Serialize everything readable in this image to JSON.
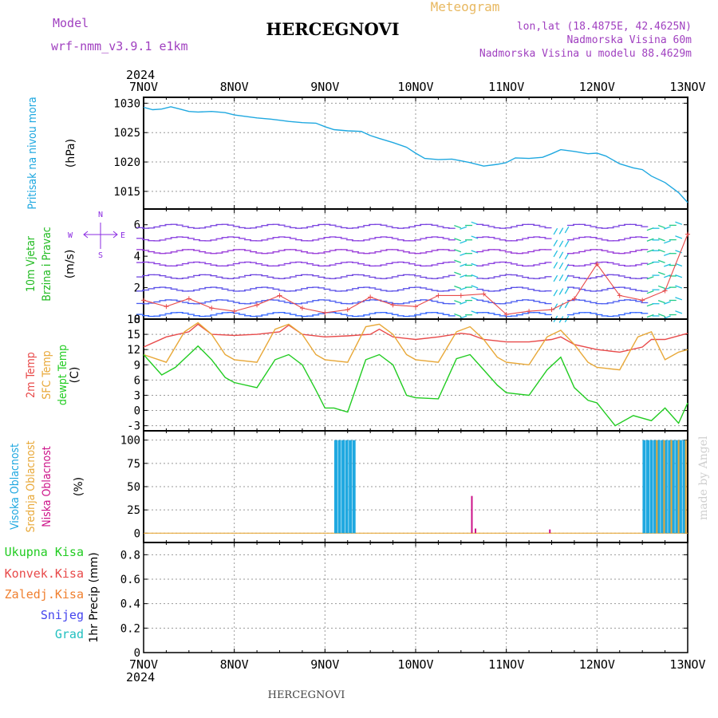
{
  "header": {
    "model_label": "Model",
    "model_name": "wrf-nmm_v3.9.1 e1km",
    "station": "HERCEGNOVI",
    "meteogram_label": "Meteogram",
    "lonlat": "lon,lat (18.4875E, 42.4625N)",
    "altitude": "Nadmorska Visina 60m",
    "model_altitude": "Nadmorska Visina u modelu 88.4629m",
    "footer_station": "HERCEGNOVI",
    "made_by": "made by Angel"
  },
  "time_axis": {
    "year": "2024",
    "labels": [
      "7NOV",
      "8NOV",
      "9NOV",
      "10NOV",
      "11NOV",
      "12NOV",
      "13NOV"
    ],
    "days": 6
  },
  "colors": {
    "pressure": "#1fa8e0",
    "temp2m": "#e84a4a",
    "sfc": "#e8a838",
    "dewpt": "#22cc22",
    "wind_label": "#22bb22",
    "high_cloud": "#1fa8e0",
    "mid_cloud": "#e8a838",
    "low_cloud": "#cc1188",
    "purple": "#8b2be2"
  },
  "compass": {
    "n": "N",
    "s": "S",
    "e": "E",
    "w": "W"
  },
  "panels": [
    {
      "id": "pressure",
      "labels": [
        {
          "text": "Pritisak na nivou mora",
          "color": "#1fa8e0"
        }
      ],
      "unit": "(hPa)",
      "yticks": [
        "1030",
        "1025",
        "1020",
        "1015"
      ]
    },
    {
      "id": "wind",
      "labels": [
        {
          "text": "10m Vjetar",
          "color": "#22bb22"
        },
        {
          "text": "Brzina i Pravac",
          "color": "#22bb22"
        }
      ],
      "unit": "(m/s)",
      "yticks": [
        "6",
        "4",
        "2",
        "0"
      ]
    },
    {
      "id": "temp",
      "labels": [
        {
          "text": "2m Temp",
          "color": "#e84a4a"
        },
        {
          "text": "SFC Temp",
          "color": "#e8a838"
        },
        {
          "text": "dewpt Temp",
          "color": "#22cc22"
        }
      ],
      "unit": "(C)",
      "yticks": [
        "18",
        "15",
        "12",
        "9",
        "6",
        "3",
        "0",
        "-3"
      ]
    },
    {
      "id": "cloud",
      "labels": [
        {
          "text": "Visoka Oblacnost",
          "color": "#1fa8e0"
        },
        {
          "text": "Srednja Oblacnost",
          "color": "#e8a838"
        },
        {
          "text": "Niska Oblacnost",
          "color": "#cc1188"
        }
      ],
      "unit": "(%)",
      "yticks": [
        "100",
        "75",
        "50",
        "25",
        "0"
      ]
    },
    {
      "id": "precip",
      "labels": [],
      "unit": "1hr Precip (mm)",
      "yticks": [
        "0.8",
        "0.6",
        "0.4",
        "0.2",
        "0"
      ]
    }
  ],
  "precip_legend": [
    {
      "text": "Ukupna Kisa",
      "color": "#22cc22"
    },
    {
      "text": "Konvek.Kisa",
      "color": "#e84a4a"
    },
    {
      "text": "Zaledj.Kisa",
      "color": "#f08030"
    },
    {
      "text": "Snijeg",
      "color": "#4444ee"
    },
    {
      "text": "Grad",
      "color": "#22c0c0"
    }
  ],
  "chart_data": [
    {
      "type": "line",
      "ylabel": "Pritisak na nivou mora (hPa)",
      "ylim": [
        1012,
        1031
      ],
      "series": [
        {
          "name": "Pritisak na nivou mora",
          "x": [
            0,
            0.1,
            0.2,
            0.3,
            0.4,
            0.5,
            0.6,
            0.75,
            0.9,
            1.0,
            1.1,
            1.25,
            1.4,
            1.5,
            1.6,
            1.75,
            1.9,
            2.0,
            2.1,
            2.25,
            2.4,
            2.5,
            2.6,
            2.75,
            2.9,
            3.0,
            3.1,
            3.25,
            3.4,
            3.5,
            3.6,
            3.75,
            3.9,
            4.0,
            4.1,
            4.25,
            4.4,
            4.5,
            4.6,
            4.75,
            4.9,
            5.0,
            5.1,
            5.25,
            5.4,
            5.5,
            5.6,
            5.75,
            5.9,
            6.0
          ],
          "y": [
            1029.3,
            1028.9,
            1029.0,
            1029.4,
            1029.0,
            1028.6,
            1028.5,
            1028.6,
            1028.4,
            1028.0,
            1027.8,
            1027.5,
            1027.3,
            1027.1,
            1026.9,
            1026.7,
            1026.6,
            1026.0,
            1025.5,
            1025.3,
            1025.2,
            1024.5,
            1024.0,
            1023.3,
            1022.5,
            1021.5,
            1020.6,
            1020.4,
            1020.5,
            1020.2,
            1019.9,
            1019.3,
            1019.6,
            1019.9,
            1020.7,
            1020.6,
            1020.8,
            1021.4,
            1022.1,
            1021.8,
            1021.4,
            1021.5,
            1021.0,
            1019.7,
            1019.0,
            1018.7,
            1017.6,
            1016.5,
            1014.8,
            1013.1
          ]
        }
      ]
    },
    {
      "type": "line",
      "ylabel": "10m Vjetar Brzina i Pravac (m/s)",
      "ylim": [
        0,
        7
      ],
      "series": [
        {
          "name": "10m Vjetar",
          "x": [
            0,
            0.25,
            0.5,
            0.75,
            1.0,
            1.25,
            1.5,
            1.75,
            2.0,
            2.25,
            2.5,
            2.75,
            3.0,
            3.25,
            3.5,
            3.75,
            4.0,
            4.25,
            4.5,
            4.75,
            5.0,
            5.25,
            5.5,
            5.75,
            6.0
          ],
          "y": [
            1.2,
            0.8,
            1.3,
            0.7,
            0.5,
            0.9,
            1.5,
            0.7,
            0.4,
            0.6,
            1.4,
            0.9,
            0.8,
            1.5,
            1.5,
            1.6,
            0.3,
            0.5,
            0.6,
            1.3,
            3.5,
            1.5,
            1.2,
            1.8,
            5.4
          ]
        }
      ]
    },
    {
      "type": "line",
      "ylabel": "Temp (C)",
      "ylim": [
        -4,
        18
      ],
      "series": [
        {
          "name": "2m Temp",
          "x": [
            0,
            0.25,
            0.5,
            0.6,
            0.75,
            1.0,
            1.25,
            1.5,
            1.6,
            1.75,
            2.0,
            2.25,
            2.5,
            2.6,
            2.75,
            3.0,
            3.25,
            3.5,
            3.6,
            3.75,
            4.0,
            4.25,
            4.5,
            4.6,
            4.75,
            5.0,
            5.25,
            5.5,
            5.6,
            5.75,
            6.0
          ],
          "y": [
            12.5,
            14.5,
            15.5,
            17.0,
            15.0,
            14.8,
            15.0,
            15.5,
            16.8,
            15.0,
            14.5,
            14.7,
            15.0,
            16.0,
            14.5,
            14.0,
            14.5,
            15.2,
            15.0,
            14.0,
            13.5,
            13.5,
            14.0,
            14.5,
            13.0,
            12.0,
            11.5,
            12.5,
            14.0,
            14.0,
            15.2
          ]
        },
        {
          "name": "SFC Temp",
          "x": [
            0,
            0.25,
            0.45,
            0.6,
            0.75,
            0.9,
            1.0,
            1.25,
            1.45,
            1.6,
            1.75,
            1.9,
            2.0,
            2.25,
            2.45,
            2.6,
            2.75,
            2.9,
            3.0,
            3.25,
            3.45,
            3.6,
            3.75,
            3.9,
            4.0,
            4.25,
            4.45,
            4.6,
            4.75,
            4.9,
            5.0,
            5.25,
            5.45,
            5.6,
            5.75,
            5.9,
            6.0
          ],
          "y": [
            11.0,
            9.5,
            15.5,
            17.3,
            15.0,
            11.0,
            10.0,
            9.5,
            16.0,
            17.0,
            15.0,
            11.0,
            10.0,
            9.5,
            16.5,
            17.0,
            15.0,
            11.0,
            10.0,
            9.5,
            15.5,
            16.5,
            14.0,
            10.5,
            9.5,
            9.0,
            14.5,
            15.8,
            13.0,
            9.5,
            8.5,
            8.0,
            14.5,
            15.5,
            10.0,
            11.5,
            12.0
          ]
        },
        {
          "name": "dewpt Temp",
          "x": [
            0,
            0.2,
            0.35,
            0.5,
            0.6,
            0.75,
            0.9,
            1.0,
            1.25,
            1.45,
            1.6,
            1.75,
            1.9,
            2.0,
            2.1,
            2.25,
            2.45,
            2.6,
            2.75,
            2.9,
            3.0,
            3.25,
            3.45,
            3.6,
            3.75,
            3.9,
            4.0,
            4.25,
            4.45,
            4.6,
            4.75,
            4.9,
            5.0,
            5.2,
            5.4,
            5.6,
            5.75,
            5.9,
            6.0
          ],
          "y": [
            11.0,
            7.0,
            8.5,
            11.0,
            12.7,
            10.0,
            6.5,
            5.5,
            4.5,
            10.0,
            11.0,
            9.0,
            4.0,
            0.5,
            0.5,
            -0.3,
            10.0,
            11.0,
            9.0,
            3.0,
            2.5,
            2.3,
            10.2,
            11.0,
            8.0,
            5.0,
            3.5,
            3.0,
            8.0,
            10.5,
            4.5,
            2.0,
            1.5,
            -3.0,
            -1.0,
            -2.0,
            0.5,
            -2.5,
            1.5
          ]
        }
      ]
    },
    {
      "type": "bar",
      "ylabel": "Oblacnost (%)",
      "ylim": [
        0,
        100
      ],
      "series": [
        {
          "name": "Visoka Oblacnost",
          "x": [
            2.12,
            2.16,
            2.2,
            2.24,
            2.28,
            2.32,
            5.52,
            5.56,
            5.6,
            5.64,
            5.68,
            5.72,
            5.76,
            5.8,
            5.84,
            5.88,
            5.92,
            5.96
          ],
          "values": [
            100,
            100,
            100,
            100,
            100,
            100,
            100,
            100,
            100,
            100,
            100,
            100,
            100,
            100,
            100,
            100,
            100,
            100
          ]
        },
        {
          "name": "Srednja Oblacnost",
          "x": [
            5.66,
            5.74,
            5.82,
            5.9,
            5.98
          ],
          "values": [
            100,
            100,
            100,
            100,
            100
          ]
        },
        {
          "name": "Niska Oblacnost",
          "x": [
            3.62,
            3.66,
            4.48
          ],
          "values": [
            40,
            5,
            4
          ]
        }
      ]
    },
    {
      "type": "bar",
      "ylabel": "1hr Precip (mm)",
      "ylim": [
        0,
        0.9
      ],
      "series": [
        {
          "name": "Ukupna Kisa",
          "x": [],
          "values": []
        }
      ]
    }
  ]
}
